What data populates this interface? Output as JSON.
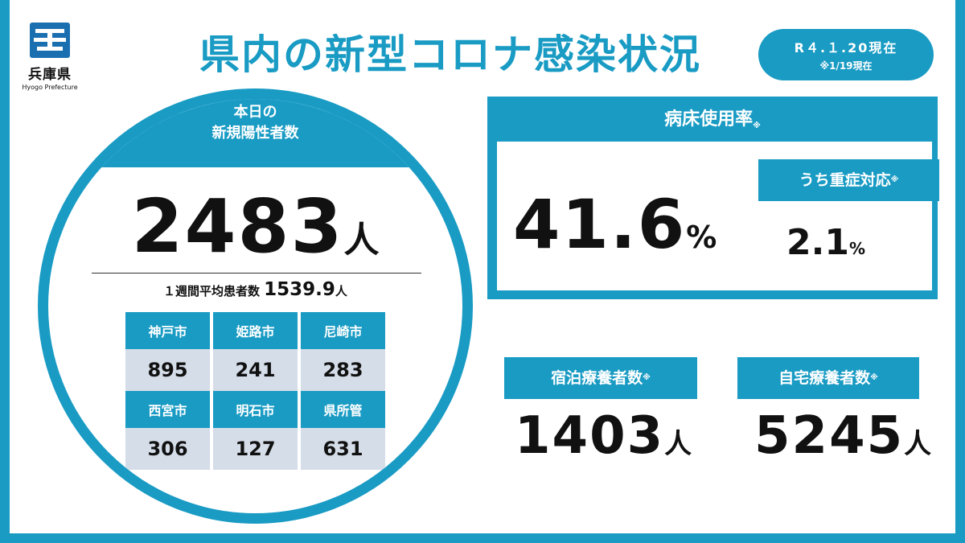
{
  "header": {
    "logo_name": "兵庫県",
    "logo_sub": "Hyogo Prefecture",
    "title": "県内の新型コロナ感染状況",
    "date_main": "R４.１.20現在",
    "date_note": "※1/19現在"
  },
  "new_cases": {
    "label_line1": "本日の",
    "label_line2": "新規陽性者数",
    "count": "2483",
    "unit": "人",
    "weekly_avg_label": "１週間平均患者数",
    "weekly_avg_value": "1539.9",
    "weekly_avg_unit": "人",
    "cities_row1": [
      {
        "name": "神戸市",
        "value": "895"
      },
      {
        "name": "姫路市",
        "value": "241"
      },
      {
        "name": "尼崎市",
        "value": "283"
      }
    ],
    "cities_row2": [
      {
        "name": "西宮市",
        "value": "306"
      },
      {
        "name": "明石市",
        "value": "127"
      },
      {
        "name": "県所管",
        "value": "631"
      }
    ]
  },
  "bed_usage": {
    "title": "病床使用率",
    "note_mark": "※",
    "value": "41.6",
    "unit": "%",
    "severe_label": "うち重症対応",
    "severe_value": "2.1",
    "severe_unit": "%"
  },
  "hotel": {
    "label": "宿泊療養者数",
    "note_mark": "※",
    "value": "1403",
    "unit": "人"
  },
  "home": {
    "label": "自宅療養者数",
    "note_mark": "※",
    "value": "5245",
    "unit": "人"
  },
  "colors": {
    "accent": "#199bc4",
    "cell_bg": "#d5dde9"
  }
}
